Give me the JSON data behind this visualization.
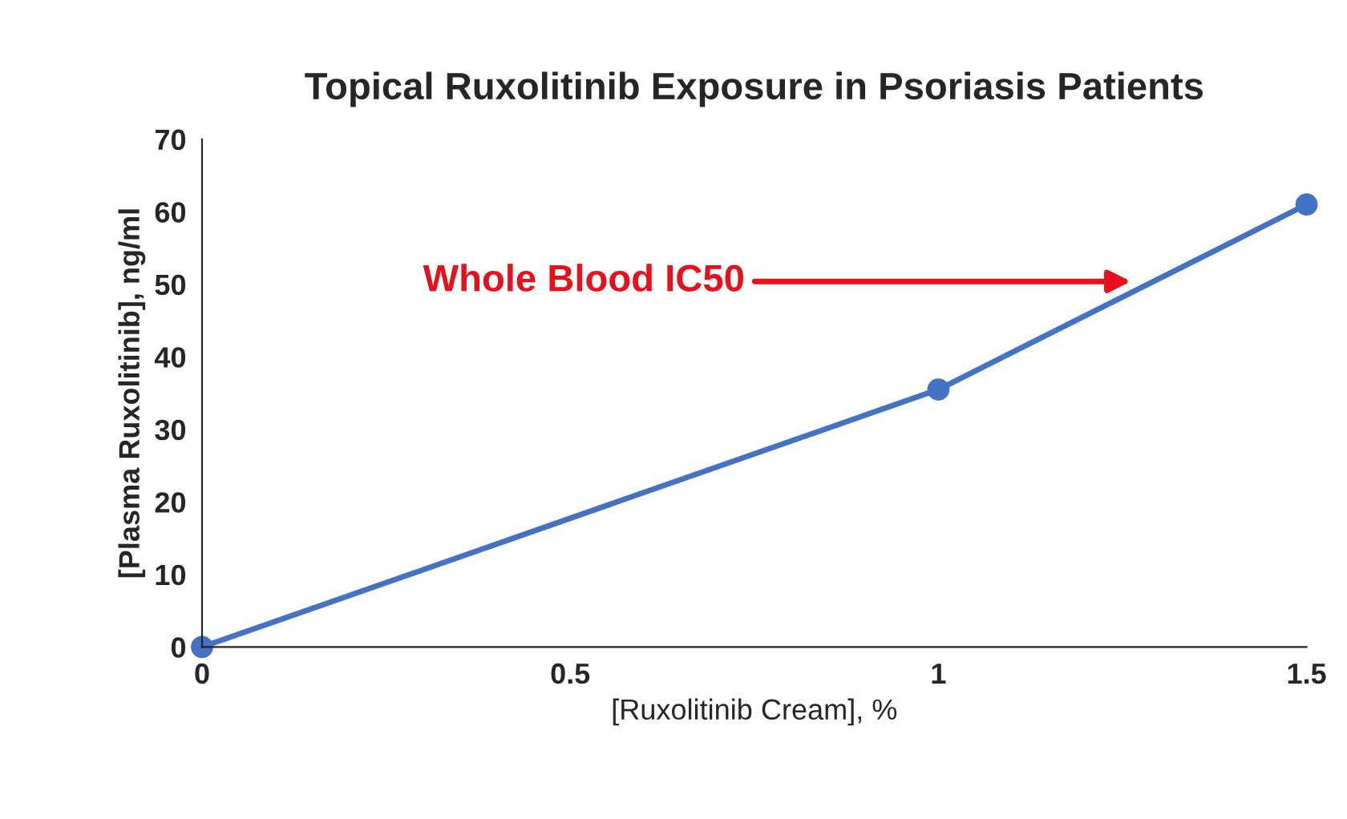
{
  "chart_data": {
    "type": "line",
    "title": "Topical Ruxolitinib Exposure in Psoriasis Patients",
    "xlabel": "[Ruxolitinib Cream], %",
    "ylabel": "[Plasma Ruxolitinib], ng/ml",
    "x": [
      0,
      1,
      1.5
    ],
    "series": [
      {
        "color": "#4472c4",
        "values": [
          0,
          35.5,
          61
        ]
      }
    ],
    "marker": "circle",
    "line_style": "solid",
    "grid": false,
    "legend": false,
    "xlim": [
      0,
      1.5
    ],
    "xticks": [
      0,
      0.5,
      1,
      1.5
    ],
    "ylim": [
      0,
      70
    ],
    "yticks": [
      0,
      10,
      20,
      30,
      40,
      50,
      60,
      70
    ],
    "annotations": [
      "Whole Blood IC50"
    ]
  }
}
